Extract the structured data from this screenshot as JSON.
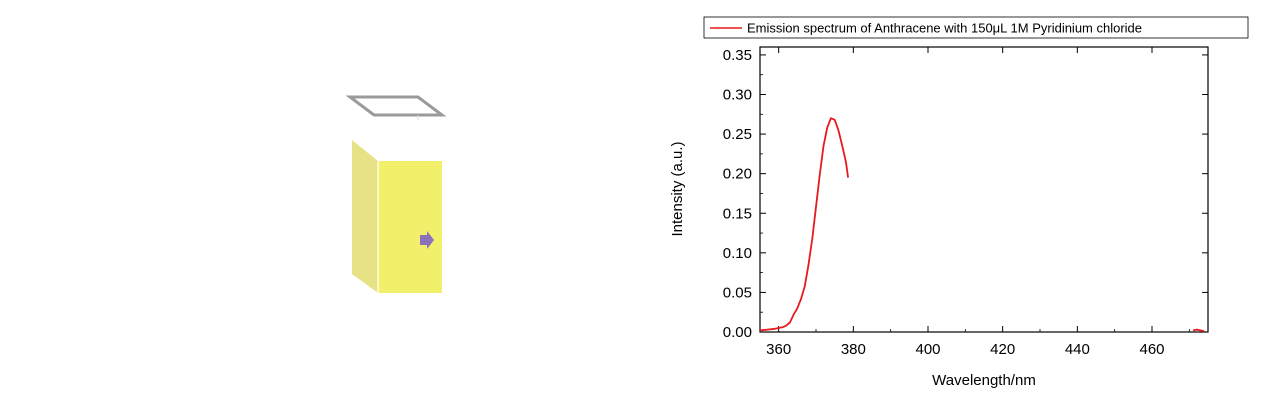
{
  "illustration": {
    "kind": "cuvette",
    "liquid_color": "#f2ef6a",
    "liquid_side_color": "#e6e285",
    "cap_color": "#9a9a9a",
    "arrow_color": "#8a72b8"
  },
  "chart_data": {
    "type": "line",
    "title": "",
    "xlabel": "Wavelength/nm",
    "ylabel": "Intensity (a.u.)",
    "xlim": [
      355,
      475
    ],
    "ylim": [
      0.0,
      0.36
    ],
    "xticks": [
      360,
      380,
      400,
      420,
      440,
      460
    ],
    "xtick_labels": [
      "360",
      "380",
      "400",
      "420",
      "440",
      "460"
    ],
    "yticks": [
      0.0,
      0.05,
      0.1,
      0.15,
      0.2,
      0.25,
      0.3,
      0.35
    ],
    "ytick_labels": [
      "0.00",
      "0.05",
      "0.10",
      "0.15",
      "0.20",
      "0.25",
      "0.30",
      "0.35"
    ],
    "legend": {
      "placement": "top",
      "entries": [
        "Emission spectrum of Anthracene with 150μL 1M Pyridinium chloride"
      ]
    },
    "series": [
      {
        "name": "Emission spectrum of Anthracene with 150μL 1M Pyridinium chloride",
        "color": "#e8191c",
        "segments": [
          [
            [
              355,
              0.002
            ],
            [
              357,
              0.003
            ],
            [
              359,
              0.004
            ],
            [
              361,
              0.006
            ],
            [
              362,
              0.008
            ],
            [
              363,
              0.012
            ],
            [
              364,
              0.022
            ],
            [
              365,
              0.03
            ],
            [
              366,
              0.042
            ],
            [
              367,
              0.058
            ],
            [
              368,
              0.085
            ],
            [
              369,
              0.118
            ],
            [
              370,
              0.158
            ],
            [
              371,
              0.198
            ],
            [
              372,
              0.235
            ],
            [
              373,
              0.258
            ],
            [
              374,
              0.27
            ],
            [
              375,
              0.268
            ],
            [
              376,
              0.255
            ],
            [
              377,
              0.236
            ],
            [
              378,
              0.215
            ],
            [
              378.6,
              0.195
            ]
          ],
          [
            [
              471,
              0.002
            ],
            [
              472,
              0.003
            ],
            [
              473,
              0.002
            ],
            [
              474,
              0.001
            ]
          ]
        ]
      }
    ]
  }
}
